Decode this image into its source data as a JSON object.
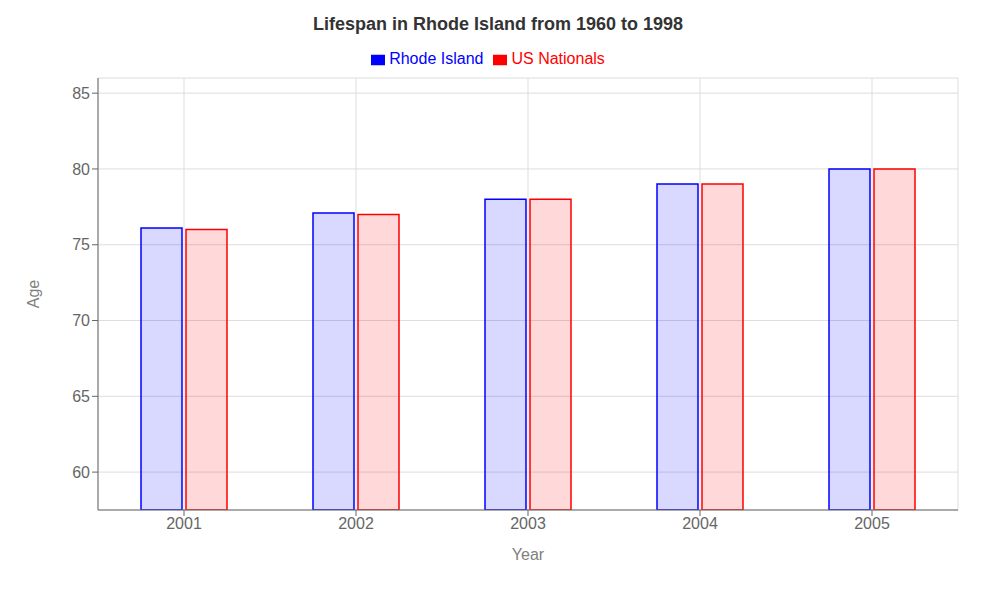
{
  "chart_data": {
    "type": "bar",
    "title": "Lifespan in Rhode Island from 1960 to 1998",
    "x_label": "Year",
    "y_label": "Age",
    "categories": [
      "2001",
      "2002",
      "2003",
      "2004",
      "2005"
    ],
    "series": [
      {
        "name": "Rhode Island",
        "color": "#0000ff",
        "values": [
          76.1,
          77.1,
          78.0,
          79.0,
          80.0
        ]
      },
      {
        "name": "US Nationals",
        "color": "#ff0000",
        "values": [
          76.0,
          77.0,
          78.0,
          79.0,
          80.0
        ]
      }
    ],
    "ylim": [
      57.5,
      86
    ],
    "yticks": [
      60,
      65,
      70,
      75,
      80,
      85
    ],
    "grid": true,
    "legend": "top"
  }
}
